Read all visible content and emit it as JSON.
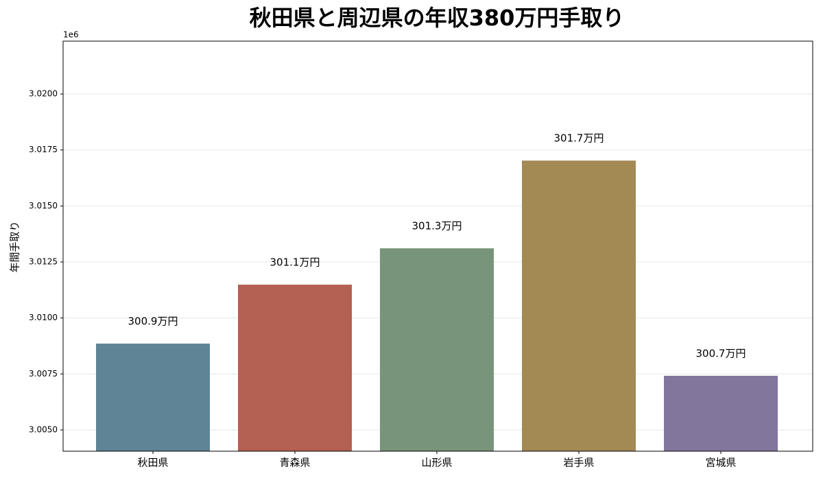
{
  "chart_data": {
    "type": "bar",
    "title": "秋田県と周辺県の年収380万円手取り",
    "ylabel": "年間手取り",
    "y_offset_label": "1e6",
    "categories": [
      "秋田県",
      "青森県",
      "山形県",
      "岩手県",
      "宮城県"
    ],
    "values": [
      3008855,
      3011487,
      3013109,
      3017026,
      3007417
    ],
    "value_labels": [
      "300.9万円",
      "301.1万円",
      "301.3万円",
      "301.7万円",
      "300.7万円"
    ],
    "colors": [
      "#5f8496",
      "#b46052",
      "#78947b",
      "#a38954",
      "#82769c"
    ],
    "ylim": [
      3004050,
      3022360
    ],
    "yticks": [
      {
        "value": 3005000,
        "label": "3.0050"
      },
      {
        "value": 3007500,
        "label": "3.0075"
      },
      {
        "value": 3010000,
        "label": "3.0100"
      },
      {
        "value": 3012500,
        "label": "3.0125"
      },
      {
        "value": 3015000,
        "label": "3.0150"
      },
      {
        "value": 3017500,
        "label": "3.0175"
      },
      {
        "value": 3020000,
        "label": "3.0200"
      }
    ],
    "grid": true
  }
}
